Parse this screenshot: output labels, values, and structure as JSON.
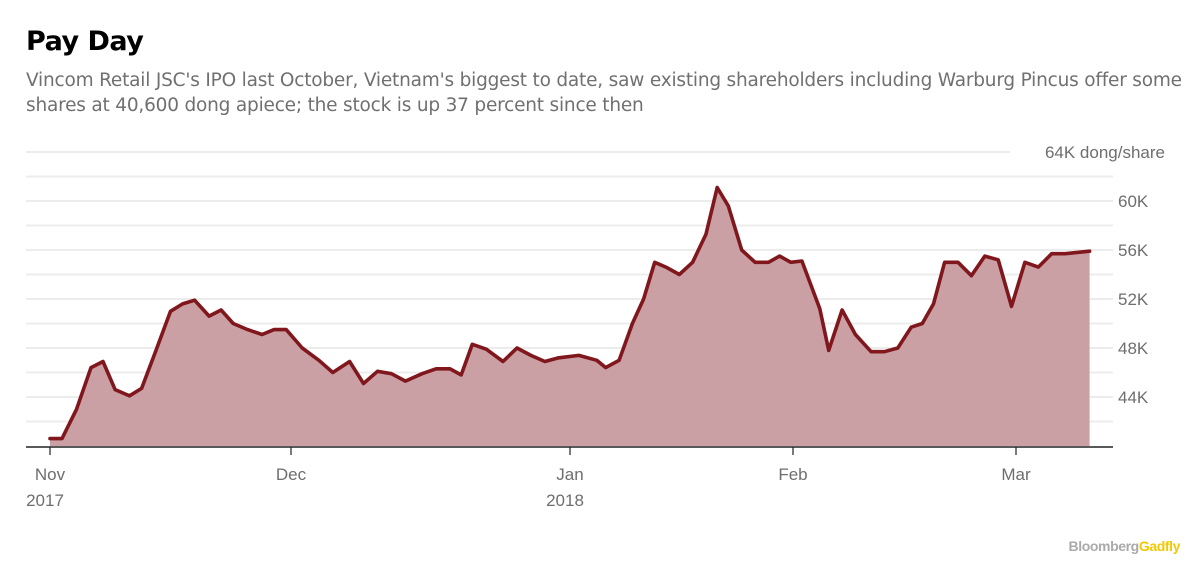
{
  "header": {
    "title": "Pay Day",
    "subtitle": "Vincom Retail JSC's IPO last October, Vietnam's biggest to date, saw existing shareholders including Warburg Pincus offer some shares at 40,600 dong apiece; the stock is up 37 percent since then"
  },
  "footer": {
    "brand": "Bloomberg",
    "product": "Gadfly"
  },
  "colors": {
    "line": "#80171d",
    "area": "#cba0a5",
    "grid": "#ececec",
    "axis": "#222222",
    "text": "#6e6e6e",
    "brand_gray": "#aaaaaa",
    "brand_yellow": "#f2c900"
  },
  "chart_data": {
    "type": "area",
    "title": "Pay Day",
    "xlabel": "",
    "ylabel": "dong/share",
    "y_unit_label": "64K dong/share",
    "ylim": [
      40000,
      64000
    ],
    "ytick_values": [
      44000,
      48000,
      52000,
      56000,
      60000,
      64000
    ],
    "ytick_labels": [
      "44K",
      "48K",
      "52K",
      "56K",
      "60K",
      "64K dong/share"
    ],
    "grid_step": 2000,
    "grid": true,
    "legend": "none",
    "x_unit": "months since Nov 1 2017",
    "xlim": [
      0,
      4.33
    ],
    "xticks": [
      {
        "t": 0,
        "label": "Nov",
        "sublabel": "2017"
      },
      {
        "t": 1,
        "label": "Dec",
        "sublabel": ""
      },
      {
        "t": 2,
        "label": "Jan",
        "sublabel": "2018"
      },
      {
        "t": 3,
        "label": "Feb",
        "sublabel": ""
      },
      {
        "t": 4,
        "label": "Mar",
        "sublabel": ""
      }
    ],
    "series": [
      {
        "name": "Vincom Retail",
        "points": [
          [
            0.0,
            40600
          ],
          [
            0.05,
            40600
          ],
          [
            0.11,
            43000
          ],
          [
            0.17,
            46400
          ],
          [
            0.22,
            46900
          ],
          [
            0.27,
            44600
          ],
          [
            0.33,
            44100
          ],
          [
            0.38,
            44700
          ],
          [
            0.44,
            47800
          ],
          [
            0.5,
            51000
          ],
          [
            0.55,
            51600
          ],
          [
            0.6,
            51900
          ],
          [
            0.66,
            50600
          ],
          [
            0.71,
            51100
          ],
          [
            0.76,
            50000
          ],
          [
            0.82,
            49500
          ],
          [
            0.88,
            49100
          ],
          [
            0.93,
            49500
          ],
          [
            0.98,
            49500
          ],
          [
            1.04,
            48000
          ],
          [
            1.1,
            47000
          ],
          [
            1.15,
            46000
          ],
          [
            1.21,
            46900
          ],
          [
            1.26,
            45100
          ],
          [
            1.31,
            46100
          ],
          [
            1.36,
            45900
          ],
          [
            1.41,
            45300
          ],
          [
            1.47,
            45900
          ],
          [
            1.52,
            46300
          ],
          [
            1.57,
            46300
          ],
          [
            1.61,
            45800
          ],
          [
            1.65,
            48300
          ],
          [
            1.7,
            47900
          ],
          [
            1.76,
            46900
          ],
          [
            1.81,
            48000
          ],
          [
            1.86,
            47400
          ],
          [
            1.91,
            46900
          ],
          [
            1.96,
            47200
          ],
          [
            2.04,
            47400
          ],
          [
            2.12,
            47000
          ],
          [
            2.16,
            46400
          ],
          [
            2.22,
            47000
          ],
          [
            2.28,
            50000
          ],
          [
            2.33,
            52000
          ],
          [
            2.38,
            55000
          ],
          [
            2.43,
            54600
          ],
          [
            2.49,
            54000
          ],
          [
            2.55,
            55000
          ],
          [
            2.61,
            57300
          ],
          [
            2.66,
            61100
          ],
          [
            2.71,
            59600
          ],
          [
            2.77,
            56000
          ],
          [
            2.83,
            55000
          ],
          [
            2.89,
            55000
          ],
          [
            2.94,
            55500
          ],
          [
            2.99,
            55000
          ],
          [
            3.04,
            55100
          ],
          [
            3.12,
            51200
          ],
          [
            3.16,
            47800
          ],
          [
            3.22,
            51100
          ],
          [
            3.28,
            49100
          ],
          [
            3.35,
            47700
          ],
          [
            3.41,
            47700
          ],
          [
            3.47,
            48000
          ],
          [
            3.53,
            49700
          ],
          [
            3.58,
            50000
          ],
          [
            3.63,
            51600
          ],
          [
            3.68,
            55000
          ],
          [
            3.74,
            55000
          ],
          [
            3.8,
            53900
          ],
          [
            3.86,
            55500
          ],
          [
            3.92,
            55200
          ],
          [
            3.98,
            51400
          ],
          [
            4.04,
            55000
          ],
          [
            4.1,
            54600
          ],
          [
            4.16,
            55700
          ],
          [
            4.22,
            55700
          ],
          [
            4.33,
            55900
          ]
        ]
      }
    ]
  }
}
